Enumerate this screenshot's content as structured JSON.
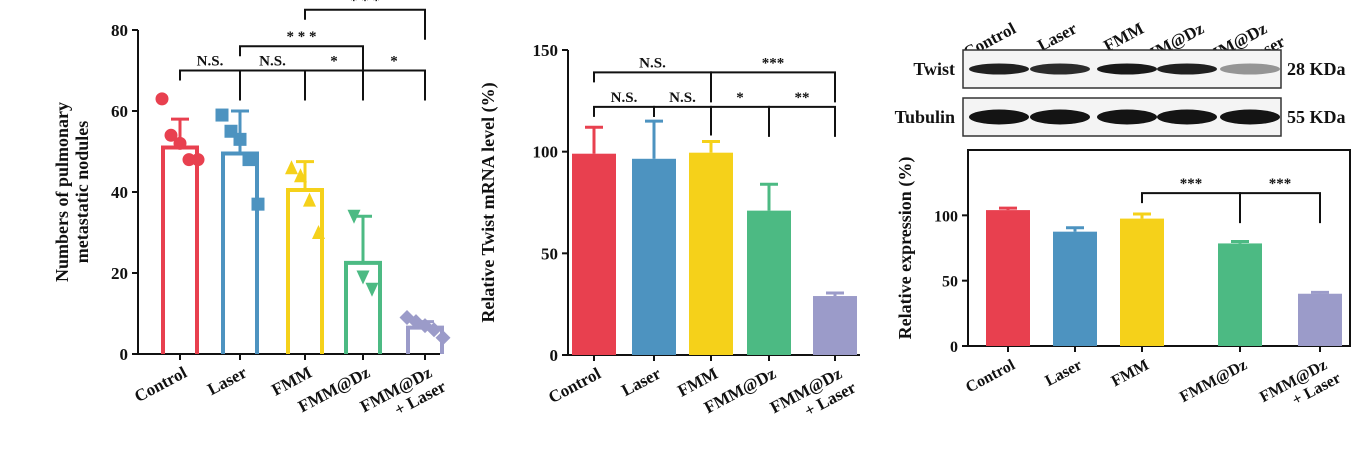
{
  "colors": {
    "Control": "#e8404f",
    "Laser": "#4d93c0",
    "FMM": "#f5d11a",
    "FMM@Dz": "#4cba83",
    "FMM@Dz + Laser": "#9b9bc9"
  },
  "chart_data": [
    {
      "type": "bar",
      "panel": "nodules",
      "ylabel": "Numbers of pulmonary metastatic nodules",
      "ylim": [
        0,
        80
      ],
      "yticks": [
        0,
        20,
        40,
        60,
        80
      ],
      "categories": [
        "Control",
        "Laser",
        "FMM",
        "FMM@Dz",
        "FMM@Dz + Laser"
      ],
      "category_labels": [
        [
          "Control"
        ],
        [
          "Laser"
        ],
        [
          "FMM"
        ],
        [
          "FMM@Dz"
        ],
        [
          "FMM@Dz",
          "+ Laser"
        ]
      ],
      "values": [
        51,
        49.5,
        40.5,
        22.5,
        6.5
      ],
      "errors": [
        7,
        10.5,
        7,
        11.5,
        1.5
      ],
      "points": [
        [
          63,
          54,
          52,
          48,
          48
        ],
        [
          59,
          55,
          53,
          48,
          37
        ],
        [
          46,
          44,
          38,
          30
        ],
        [
          34,
          19,
          16
        ],
        [
          9,
          8,
          7,
          6,
          4
        ]
      ],
      "markers": [
        "circle",
        "square",
        "triangle-up",
        "triangle-down",
        "diamond"
      ],
      "significance": [
        {
          "from": 0,
          "to": 1,
          "label": "N.S.",
          "y": 70
        },
        {
          "from": 1,
          "to": 2,
          "label": "N.S.",
          "y": 70
        },
        {
          "from": 2,
          "to": 3,
          "label": "*",
          "y": 70
        },
        {
          "from": 3,
          "to": 4,
          "label": "*",
          "y": 70
        },
        {
          "from": 1,
          "to": 3,
          "label": "* * *",
          "y": 76
        },
        {
          "from": 2,
          "to": 4,
          "label": "* * *",
          "y": 85
        }
      ]
    },
    {
      "type": "bar",
      "panel": "mrna",
      "ylabel": "Relative Twist mRNA level (%)",
      "ylim": [
        0,
        150
      ],
      "yticks": [
        0,
        50,
        100,
        150
      ],
      "categories": [
        "Control",
        "Laser",
        "FMM",
        "FMM@Dz",
        "FMM@Dz + Laser"
      ],
      "category_labels": [
        [
          "Control"
        ],
        [
          "Laser"
        ],
        [
          "FMM"
        ],
        [
          "FMM@Dz"
        ],
        [
          "FMM@Dz",
          "+ Laser"
        ]
      ],
      "values": [
        99,
        96.5,
        99.5,
        71,
        29
      ],
      "errors": [
        13,
        18.5,
        5.5,
        13,
        1.5
      ],
      "significance": [
        {
          "from": 0,
          "to": 1,
          "label": "N.S.",
          "y": 122
        },
        {
          "from": 1,
          "to": 2,
          "label": "N.S.",
          "y": 122
        },
        {
          "from": 0,
          "to": 2,
          "label": "N.S.",
          "y": 139
        },
        {
          "from": 2,
          "to": 3,
          "label": "*",
          "y": 122
        },
        {
          "from": 3,
          "to": 4,
          "label": "**",
          "y": 122
        },
        {
          "from": 2,
          "to": 4,
          "label": "***",
          "y": 139
        }
      ]
    },
    {
      "type": "bar",
      "panel": "protein",
      "ylabel": "Relative expression (%)",
      "ylim": [
        0,
        150
      ],
      "yticks": [
        0,
        50,
        100
      ],
      "categories": [
        "Control",
        "Laser",
        "FMM",
        "FMM@Dz",
        "FMM@Dz + Laser"
      ],
      "category_labels": [
        [
          "Control"
        ],
        [
          "Laser"
        ],
        [
          "FMM"
        ],
        [
          "FMM@Dz"
        ],
        [
          "FMM@Dz",
          "+ Laser"
        ]
      ],
      "values": [
        104,
        87.5,
        97.5,
        78.5,
        40
      ],
      "errors": [
        1.5,
        3,
        3.5,
        1.5,
        1
      ],
      "significance": [
        {
          "from": 2,
          "to": 3,
          "label": "***",
          "y": 117
        },
        {
          "from": 3,
          "to": 4,
          "label": "***",
          "y": 117
        }
      ]
    }
  ],
  "western_blot": {
    "lanes": [
      "Control",
      "Laser",
      "FMM",
      "FMM@Dz",
      "FMM@Dz + Laser"
    ],
    "lane_labels": [
      [
        "Control"
      ],
      [
        "Laser"
      ],
      [
        "FMM"
      ],
      [
        "FMM@Dz"
      ],
      [
        "FMM@Dz",
        "+ Laser"
      ]
    ],
    "rows": [
      {
        "name": "Twist",
        "size": "28 KDa",
        "intensity": [
          0.95,
          0.9,
          0.98,
          0.95,
          0.45
        ]
      },
      {
        "name": "Tubulin",
        "size": "55 KDa",
        "intensity": [
          1.0,
          1.0,
          1.0,
          1.0,
          1.0
        ]
      }
    ]
  }
}
